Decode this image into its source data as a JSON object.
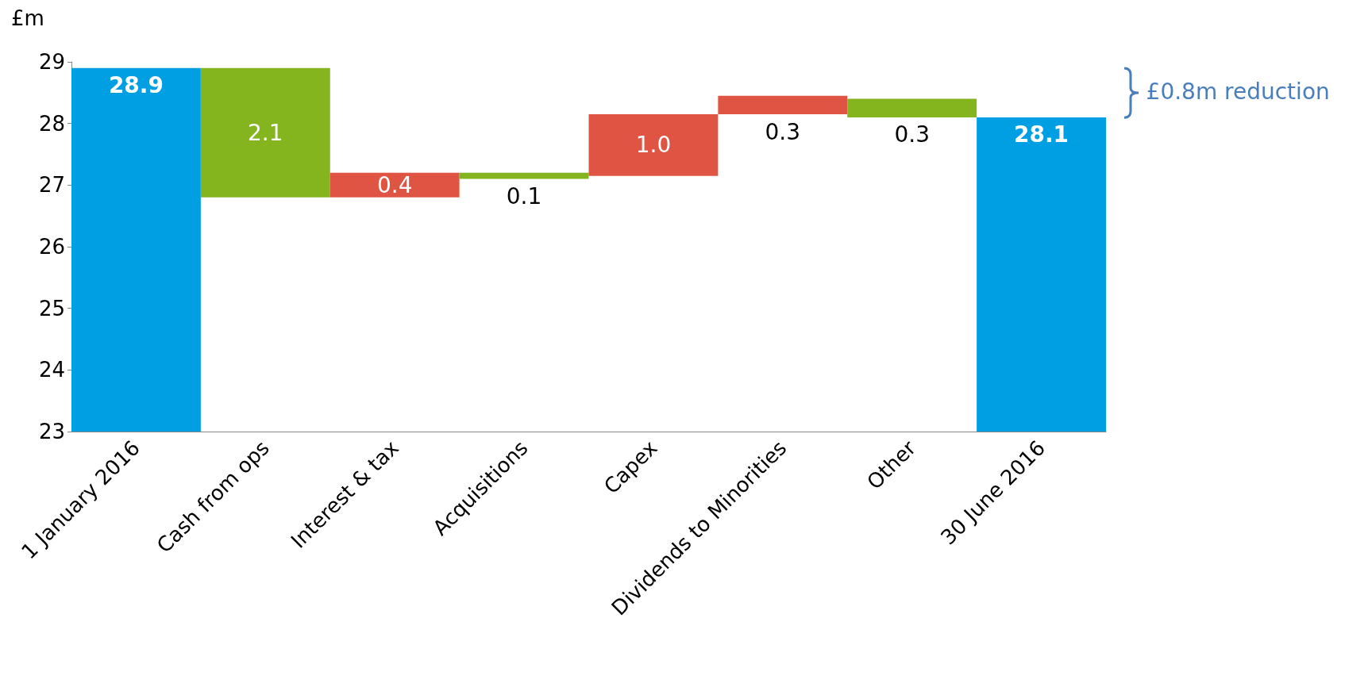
{
  "chart_data": {
    "type": "bar",
    "ylabel": "£m",
    "categories": [
      "1 January 2016",
      "Cash from ops",
      "Interest & tax",
      "Acquisitions",
      "Capex",
      "Dividends to Minorities",
      "Other",
      "30 June 2016"
    ],
    "values": [
      28.9,
      2.1,
      0.4,
      0.1,
      1.0,
      0.3,
      0.3,
      28.1
    ],
    "base": [
      null,
      26.8,
      26.8,
      27.1,
      27.15,
      28.15,
      28.1,
      null
    ],
    "colors": [
      "#009fe3",
      "#84b51f",
      "#e05443",
      "#84b51f",
      "#e05443",
      "#e05443",
      "#84b51f",
      "#009fe3"
    ],
    "ylim": [
      23,
      29
    ],
    "yticks": [
      23,
      24,
      25,
      26,
      27,
      28,
      29
    ],
    "value_labels": [
      "28.9",
      "2.1",
      "0.4",
      "0.1",
      "1.0",
      "0.3",
      "0.3",
      "28.1"
    ],
    "grid": false,
    "annotations": [
      "£0.8m reduction"
    ]
  }
}
